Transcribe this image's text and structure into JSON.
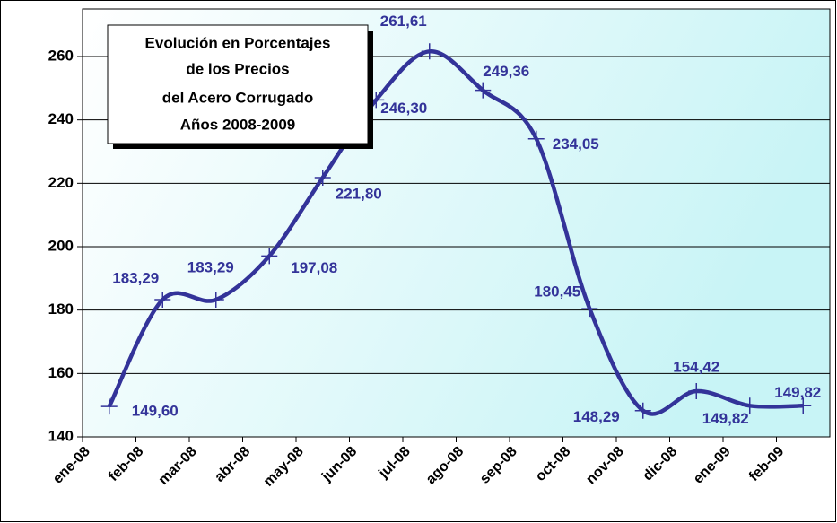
{
  "chart_data": {
    "type": "line",
    "title": [
      "Evolución en Porcentajes",
      "de los Precios",
      "del Acero Corrugado",
      "Años 2008-2009"
    ],
    "categories": [
      "ene-08",
      "feb-08",
      "mar-08",
      "abr-08",
      "may-08",
      "jun-08",
      "jul-08",
      "ago-08",
      "sep-08",
      "oct-08",
      "nov-08",
      "dic-08",
      "ene-09",
      "feb-09"
    ],
    "values": [
      149.6,
      183.29,
      183.29,
      197.08,
      221.8,
      246.3,
      261.61,
      249.36,
      234.05,
      180.45,
      148.29,
      154.42,
      149.82,
      149.82
    ],
    "value_labels": [
      "149,60",
      "183,29",
      "183,29",
      "197,08",
      "221,80",
      "246,30",
      "261,61",
      "249,36",
      "234,05",
      "180,45",
      "148,29",
      "154,42",
      "149,82",
      "149,82"
    ],
    "color": "#333399",
    "ylim": [
      140,
      275
    ],
    "yticks": [
      140,
      160,
      180,
      200,
      220,
      240,
      260
    ],
    "grid": true
  }
}
